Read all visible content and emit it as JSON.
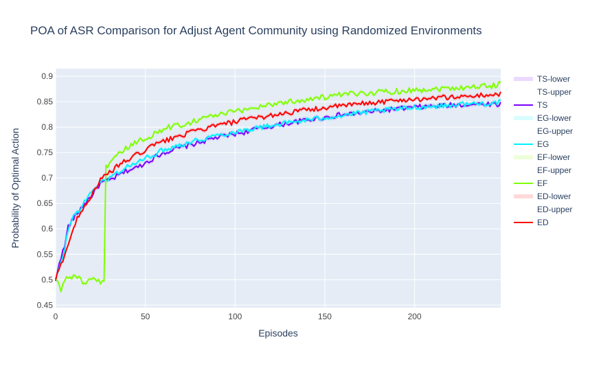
{
  "chart_data": {
    "type": "line",
    "title": "POA of ASR Comparison for Adjust Agent Community using Randomized Environments",
    "xlabel": "Episodes",
    "ylabel": "Probability of Optimal Action",
    "xlim": [
      0,
      248
    ],
    "ylim": [
      0.445,
      0.915
    ],
    "xticks": [
      0,
      50,
      100,
      150,
      200
    ],
    "yticks": [
      0.45,
      0.5,
      0.55,
      0.6,
      0.65,
      0.7,
      0.75,
      0.8,
      0.85,
      0.9
    ],
    "grid": true,
    "legend_position": "right",
    "legend": [
      "TS-lower",
      "TS-upper",
      "TS",
      "EG-lower",
      "EG-upper",
      "EG",
      "EF-lower",
      "EF-upper",
      "EF",
      "ED-lower",
      "ED-upper",
      "ED"
    ],
    "band_halfwidth": 0.004,
    "series": [
      {
        "name": "TS",
        "color": "#7b00ff",
        "points": [
          [
            0,
            0.495
          ],
          [
            2,
            0.535
          ],
          [
            5,
            0.565
          ],
          [
            7,
            0.605
          ],
          [
            10,
            0.62
          ],
          [
            15,
            0.645
          ],
          [
            20,
            0.665
          ],
          [
            25,
            0.69
          ],
          [
            30,
            0.695
          ],
          [
            35,
            0.705
          ],
          [
            40,
            0.715
          ],
          [
            45,
            0.72
          ],
          [
            50,
            0.73
          ],
          [
            55,
            0.74
          ],
          [
            60,
            0.75
          ],
          [
            65,
            0.755
          ],
          [
            70,
            0.76
          ],
          [
            75,
            0.765
          ],
          [
            80,
            0.77
          ],
          [
            85,
            0.775
          ],
          [
            90,
            0.78
          ],
          [
            95,
            0.783
          ],
          [
            100,
            0.787
          ],
          [
            105,
            0.79
          ],
          [
            110,
            0.795
          ],
          [
            115,
            0.798
          ],
          [
            120,
            0.802
          ],
          [
            125,
            0.805
          ],
          [
            130,
            0.808
          ],
          [
            135,
            0.811
          ],
          [
            140,
            0.814
          ],
          [
            145,
            0.817
          ],
          [
            150,
            0.819
          ],
          [
            155,
            0.822
          ],
          [
            160,
            0.824
          ],
          [
            165,
            0.826
          ],
          [
            170,
            0.828
          ],
          [
            175,
            0.83
          ],
          [
            180,
            0.832
          ],
          [
            185,
            0.834
          ],
          [
            190,
            0.836
          ],
          [
            195,
            0.837
          ],
          [
            200,
            0.839
          ],
          [
            205,
            0.84
          ],
          [
            210,
            0.841
          ],
          [
            215,
            0.842
          ],
          [
            220,
            0.843
          ],
          [
            225,
            0.844
          ],
          [
            230,
            0.845
          ],
          [
            235,
            0.845
          ],
          [
            240,
            0.846
          ],
          [
            245,
            0.845
          ],
          [
            248,
            0.845
          ]
        ]
      },
      {
        "name": "EG",
        "color": "#00f0ff",
        "points": [
          [
            0,
            0.5
          ],
          [
            2,
            0.52
          ],
          [
            5,
            0.56
          ],
          [
            7,
            0.6
          ],
          [
            10,
            0.625
          ],
          [
            15,
            0.645
          ],
          [
            20,
            0.675
          ],
          [
            25,
            0.69
          ],
          [
            30,
            0.7
          ],
          [
            35,
            0.712
          ],
          [
            40,
            0.722
          ],
          [
            45,
            0.73
          ],
          [
            50,
            0.738
          ],
          [
            55,
            0.747
          ],
          [
            60,
            0.755
          ],
          [
            65,
            0.761
          ],
          [
            70,
            0.766
          ],
          [
            75,
            0.771
          ],
          [
            80,
            0.775
          ],
          [
            85,
            0.78
          ],
          [
            90,
            0.784
          ],
          [
            95,
            0.787
          ],
          [
            100,
            0.791
          ],
          [
            105,
            0.794
          ],
          [
            110,
            0.797
          ],
          [
            115,
            0.8
          ],
          [
            120,
            0.803
          ],
          [
            125,
            0.806
          ],
          [
            130,
            0.809
          ],
          [
            135,
            0.811
          ],
          [
            140,
            0.814
          ],
          [
            145,
            0.816
          ],
          [
            150,
            0.819
          ],
          [
            155,
            0.821
          ],
          [
            160,
            0.823
          ],
          [
            165,
            0.826
          ],
          [
            170,
            0.828
          ],
          [
            175,
            0.83
          ],
          [
            180,
            0.832
          ],
          [
            185,
            0.834
          ],
          [
            190,
            0.835
          ],
          [
            195,
            0.837
          ],
          [
            200,
            0.839
          ],
          [
            205,
            0.84
          ],
          [
            210,
            0.841
          ],
          [
            215,
            0.842
          ],
          [
            220,
            0.843
          ],
          [
            225,
            0.845
          ],
          [
            230,
            0.846
          ],
          [
            235,
            0.846
          ],
          [
            240,
            0.847
          ],
          [
            245,
            0.848
          ],
          [
            248,
            0.849
          ]
        ]
      },
      {
        "name": "EF",
        "color": "#80ff00",
        "points": [
          [
            0,
            0.5
          ],
          [
            2,
            0.49
          ],
          [
            3,
            0.478
          ],
          [
            5,
            0.5
          ],
          [
            8,
            0.505
          ],
          [
            11,
            0.508
          ],
          [
            14,
            0.5
          ],
          [
            17,
            0.49
          ],
          [
            20,
            0.5
          ],
          [
            23,
            0.495
          ],
          [
            26,
            0.498
          ],
          [
            27,
            0.497
          ],
          [
            28,
            0.725
          ],
          [
            30,
            0.725
          ],
          [
            35,
            0.745
          ],
          [
            40,
            0.76
          ],
          [
            45,
            0.77
          ],
          [
            50,
            0.778
          ],
          [
            55,
            0.787
          ],
          [
            60,
            0.795
          ],
          [
            65,
            0.802
          ],
          [
            70,
            0.805
          ],
          [
            75,
            0.81
          ],
          [
            80,
            0.816
          ],
          [
            85,
            0.82
          ],
          [
            90,
            0.824
          ],
          [
            95,
            0.827
          ],
          [
            100,
            0.83
          ],
          [
            105,
            0.834
          ],
          [
            110,
            0.838
          ],
          [
            115,
            0.842
          ],
          [
            120,
            0.845
          ],
          [
            125,
            0.848
          ],
          [
            130,
            0.85
          ],
          [
            135,
            0.852
          ],
          [
            140,
            0.855
          ],
          [
            145,
            0.857
          ],
          [
            150,
            0.859
          ],
          [
            155,
            0.861
          ],
          [
            160,
            0.863
          ],
          [
            165,
            0.865
          ],
          [
            170,
            0.866
          ],
          [
            175,
            0.868
          ],
          [
            180,
            0.869
          ],
          [
            185,
            0.87
          ],
          [
            190,
            0.871
          ],
          [
            195,
            0.872
          ],
          [
            200,
            0.873
          ],
          [
            205,
            0.874
          ],
          [
            210,
            0.875
          ],
          [
            215,
            0.876
          ],
          [
            220,
            0.877
          ],
          [
            225,
            0.878
          ],
          [
            230,
            0.879
          ],
          [
            235,
            0.88
          ],
          [
            240,
            0.881
          ],
          [
            245,
            0.882
          ],
          [
            248,
            0.885
          ]
        ]
      },
      {
        "name": "ED",
        "color": "#ff0000",
        "points": [
          [
            0,
            0.5
          ],
          [
            2,
            0.52
          ],
          [
            5,
            0.55
          ],
          [
            7,
            0.57
          ],
          [
            10,
            0.6
          ],
          [
            12,
            0.62
          ],
          [
            15,
            0.64
          ],
          [
            18,
            0.655
          ],
          [
            20,
            0.665
          ],
          [
            22,
            0.68
          ],
          [
            25,
            0.695
          ],
          [
            28,
            0.705
          ],
          [
            30,
            0.71
          ],
          [
            35,
            0.725
          ],
          [
            40,
            0.735
          ],
          [
            45,
            0.745
          ],
          [
            50,
            0.755
          ],
          [
            55,
            0.765
          ],
          [
            60,
            0.772
          ],
          [
            65,
            0.778
          ],
          [
            70,
            0.784
          ],
          [
            75,
            0.789
          ],
          [
            80,
            0.794
          ],
          [
            85,
            0.799
          ],
          [
            90,
            0.803
          ],
          [
            95,
            0.807
          ],
          [
            100,
            0.81
          ],
          [
            105,
            0.814
          ],
          [
            110,
            0.817
          ],
          [
            115,
            0.82
          ],
          [
            120,
            0.823
          ],
          [
            125,
            0.826
          ],
          [
            130,
            0.829
          ],
          [
            135,
            0.831
          ],
          [
            140,
            0.834
          ],
          [
            145,
            0.836
          ],
          [
            150,
            0.838
          ],
          [
            155,
            0.84
          ],
          [
            160,
            0.842
          ],
          [
            165,
            0.844
          ],
          [
            170,
            0.846
          ],
          [
            175,
            0.848
          ],
          [
            180,
            0.849
          ],
          [
            185,
            0.851
          ],
          [
            190,
            0.852
          ],
          [
            195,
            0.854
          ],
          [
            200,
            0.855
          ],
          [
            205,
            0.856
          ],
          [
            210,
            0.857
          ],
          [
            215,
            0.858
          ],
          [
            220,
            0.859
          ],
          [
            225,
            0.86
          ],
          [
            230,
            0.861
          ],
          [
            235,
            0.862
          ],
          [
            240,
            0.863
          ],
          [
            245,
            0.864
          ],
          [
            248,
            0.866
          ]
        ]
      }
    ]
  }
}
